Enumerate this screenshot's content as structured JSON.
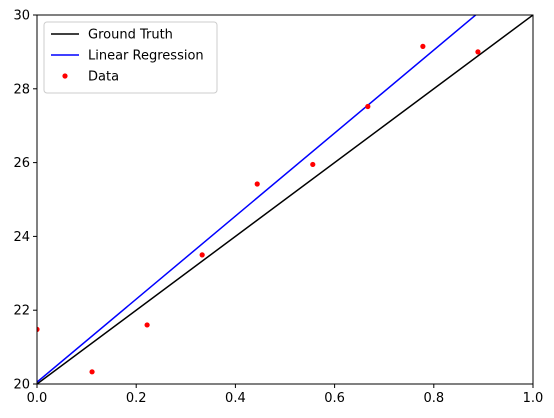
{
  "chart_data": {
    "type": "line",
    "title": "",
    "xlabel": "",
    "ylabel": "",
    "xlim": [
      0,
      1
    ],
    "ylim": [
      20,
      30
    ],
    "xticks": [
      "0.0",
      "0.2",
      "0.4",
      "0.6",
      "0.8",
      "1.0"
    ],
    "yticks": [
      "20",
      "22",
      "24",
      "26",
      "28",
      "30"
    ],
    "grid": false,
    "legend_position": "top-left",
    "series": [
      {
        "name": "Ground Truth",
        "style": "line",
        "color": "#000000",
        "x": [
          0,
          1
        ],
        "y": [
          20,
          30
        ]
      },
      {
        "name": "Linear Regression",
        "style": "line",
        "color": "#0000ff",
        "x": [
          0,
          1
        ],
        "y": [
          20.05,
          31.3
        ]
      },
      {
        "name": "Data",
        "style": "points",
        "color": "#ff0000",
        "x": [
          0.0,
          0.111,
          0.222,
          0.333,
          0.444,
          0.556,
          0.667,
          0.778,
          0.889
        ],
        "y": [
          21.48,
          20.33,
          21.6,
          23.5,
          25.42,
          25.95,
          27.52,
          29.15,
          29.0
        ]
      }
    ]
  }
}
